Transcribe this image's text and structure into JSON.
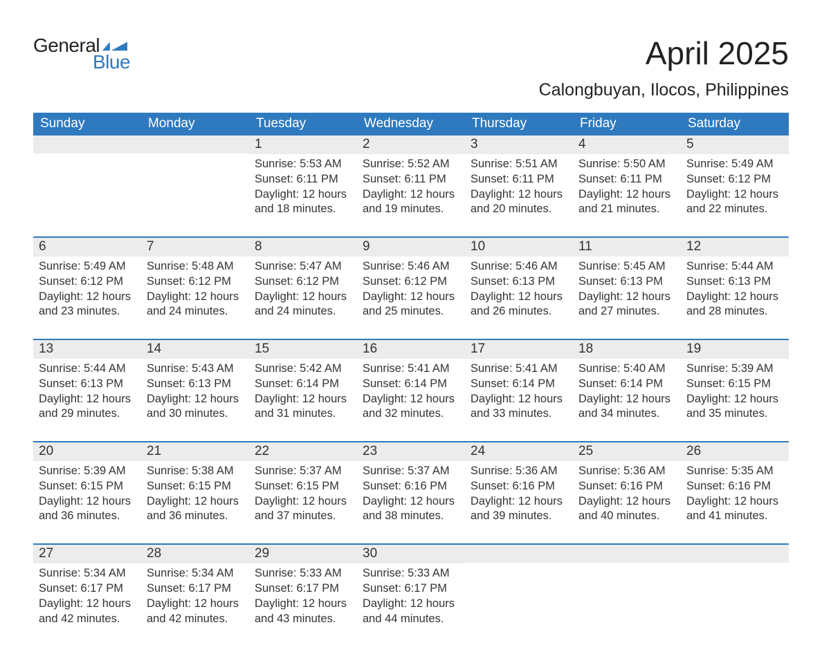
{
  "brand": {
    "word1": "General",
    "word2": "Blue",
    "flag_color": "#2f7abf",
    "text_dark": "#222222"
  },
  "title": "April 2025",
  "location": "Calongbuyan, Ilocos, Philippines",
  "colors": {
    "header_bg": "#2f7abf",
    "header_text": "#ffffff",
    "daynum_bg": "#ececec",
    "row_border": "#2f7abf",
    "body_text": "#333333",
    "page_bg": "#ffffff"
  },
  "weekdays": [
    "Sunday",
    "Monday",
    "Tuesday",
    "Wednesday",
    "Thursday",
    "Friday",
    "Saturday"
  ],
  "weeks": [
    [
      {
        "day": "",
        "sunrise": "",
        "sunset": "",
        "daylight1": "",
        "daylight2": ""
      },
      {
        "day": "",
        "sunrise": "",
        "sunset": "",
        "daylight1": "",
        "daylight2": ""
      },
      {
        "day": "1",
        "sunrise": "Sunrise: 5:53 AM",
        "sunset": "Sunset: 6:11 PM",
        "daylight1": "Daylight: 12 hours",
        "daylight2": "and 18 minutes."
      },
      {
        "day": "2",
        "sunrise": "Sunrise: 5:52 AM",
        "sunset": "Sunset: 6:11 PM",
        "daylight1": "Daylight: 12 hours",
        "daylight2": "and 19 minutes."
      },
      {
        "day": "3",
        "sunrise": "Sunrise: 5:51 AM",
        "sunset": "Sunset: 6:11 PM",
        "daylight1": "Daylight: 12 hours",
        "daylight2": "and 20 minutes."
      },
      {
        "day": "4",
        "sunrise": "Sunrise: 5:50 AM",
        "sunset": "Sunset: 6:11 PM",
        "daylight1": "Daylight: 12 hours",
        "daylight2": "and 21 minutes."
      },
      {
        "day": "5",
        "sunrise": "Sunrise: 5:49 AM",
        "sunset": "Sunset: 6:12 PM",
        "daylight1": "Daylight: 12 hours",
        "daylight2": "and 22 minutes."
      }
    ],
    [
      {
        "day": "6",
        "sunrise": "Sunrise: 5:49 AM",
        "sunset": "Sunset: 6:12 PM",
        "daylight1": "Daylight: 12 hours",
        "daylight2": "and 23 minutes."
      },
      {
        "day": "7",
        "sunrise": "Sunrise: 5:48 AM",
        "sunset": "Sunset: 6:12 PM",
        "daylight1": "Daylight: 12 hours",
        "daylight2": "and 24 minutes."
      },
      {
        "day": "8",
        "sunrise": "Sunrise: 5:47 AM",
        "sunset": "Sunset: 6:12 PM",
        "daylight1": "Daylight: 12 hours",
        "daylight2": "and 24 minutes."
      },
      {
        "day": "9",
        "sunrise": "Sunrise: 5:46 AM",
        "sunset": "Sunset: 6:12 PM",
        "daylight1": "Daylight: 12 hours",
        "daylight2": "and 25 minutes."
      },
      {
        "day": "10",
        "sunrise": "Sunrise: 5:46 AM",
        "sunset": "Sunset: 6:13 PM",
        "daylight1": "Daylight: 12 hours",
        "daylight2": "and 26 minutes."
      },
      {
        "day": "11",
        "sunrise": "Sunrise: 5:45 AM",
        "sunset": "Sunset: 6:13 PM",
        "daylight1": "Daylight: 12 hours",
        "daylight2": "and 27 minutes."
      },
      {
        "day": "12",
        "sunrise": "Sunrise: 5:44 AM",
        "sunset": "Sunset: 6:13 PM",
        "daylight1": "Daylight: 12 hours",
        "daylight2": "and 28 minutes."
      }
    ],
    [
      {
        "day": "13",
        "sunrise": "Sunrise: 5:44 AM",
        "sunset": "Sunset: 6:13 PM",
        "daylight1": "Daylight: 12 hours",
        "daylight2": "and 29 minutes."
      },
      {
        "day": "14",
        "sunrise": "Sunrise: 5:43 AM",
        "sunset": "Sunset: 6:13 PM",
        "daylight1": "Daylight: 12 hours",
        "daylight2": "and 30 minutes."
      },
      {
        "day": "15",
        "sunrise": "Sunrise: 5:42 AM",
        "sunset": "Sunset: 6:14 PM",
        "daylight1": "Daylight: 12 hours",
        "daylight2": "and 31 minutes."
      },
      {
        "day": "16",
        "sunrise": "Sunrise: 5:41 AM",
        "sunset": "Sunset: 6:14 PM",
        "daylight1": "Daylight: 12 hours",
        "daylight2": "and 32 minutes."
      },
      {
        "day": "17",
        "sunrise": "Sunrise: 5:41 AM",
        "sunset": "Sunset: 6:14 PM",
        "daylight1": "Daylight: 12 hours",
        "daylight2": "and 33 minutes."
      },
      {
        "day": "18",
        "sunrise": "Sunrise: 5:40 AM",
        "sunset": "Sunset: 6:14 PM",
        "daylight1": "Daylight: 12 hours",
        "daylight2": "and 34 minutes."
      },
      {
        "day": "19",
        "sunrise": "Sunrise: 5:39 AM",
        "sunset": "Sunset: 6:15 PM",
        "daylight1": "Daylight: 12 hours",
        "daylight2": "and 35 minutes."
      }
    ],
    [
      {
        "day": "20",
        "sunrise": "Sunrise: 5:39 AM",
        "sunset": "Sunset: 6:15 PM",
        "daylight1": "Daylight: 12 hours",
        "daylight2": "and 36 minutes."
      },
      {
        "day": "21",
        "sunrise": "Sunrise: 5:38 AM",
        "sunset": "Sunset: 6:15 PM",
        "daylight1": "Daylight: 12 hours",
        "daylight2": "and 36 minutes."
      },
      {
        "day": "22",
        "sunrise": "Sunrise: 5:37 AM",
        "sunset": "Sunset: 6:15 PM",
        "daylight1": "Daylight: 12 hours",
        "daylight2": "and 37 minutes."
      },
      {
        "day": "23",
        "sunrise": "Sunrise: 5:37 AM",
        "sunset": "Sunset: 6:16 PM",
        "daylight1": "Daylight: 12 hours",
        "daylight2": "and 38 minutes."
      },
      {
        "day": "24",
        "sunrise": "Sunrise: 5:36 AM",
        "sunset": "Sunset: 6:16 PM",
        "daylight1": "Daylight: 12 hours",
        "daylight2": "and 39 minutes."
      },
      {
        "day": "25",
        "sunrise": "Sunrise: 5:36 AM",
        "sunset": "Sunset: 6:16 PM",
        "daylight1": "Daylight: 12 hours",
        "daylight2": "and 40 minutes."
      },
      {
        "day": "26",
        "sunrise": "Sunrise: 5:35 AM",
        "sunset": "Sunset: 6:16 PM",
        "daylight1": "Daylight: 12 hours",
        "daylight2": "and 41 minutes."
      }
    ],
    [
      {
        "day": "27",
        "sunrise": "Sunrise: 5:34 AM",
        "sunset": "Sunset: 6:17 PM",
        "daylight1": "Daylight: 12 hours",
        "daylight2": "and 42 minutes."
      },
      {
        "day": "28",
        "sunrise": "Sunrise: 5:34 AM",
        "sunset": "Sunset: 6:17 PM",
        "daylight1": "Daylight: 12 hours",
        "daylight2": "and 42 minutes."
      },
      {
        "day": "29",
        "sunrise": "Sunrise: 5:33 AM",
        "sunset": "Sunset: 6:17 PM",
        "daylight1": "Daylight: 12 hours",
        "daylight2": "and 43 minutes."
      },
      {
        "day": "30",
        "sunrise": "Sunrise: 5:33 AM",
        "sunset": "Sunset: 6:17 PM",
        "daylight1": "Daylight: 12 hours",
        "daylight2": "and 44 minutes."
      },
      {
        "day": "",
        "sunrise": "",
        "sunset": "",
        "daylight1": "",
        "daylight2": ""
      },
      {
        "day": "",
        "sunrise": "",
        "sunset": "",
        "daylight1": "",
        "daylight2": ""
      },
      {
        "day": "",
        "sunrise": "",
        "sunset": "",
        "daylight1": "",
        "daylight2": ""
      }
    ]
  ]
}
